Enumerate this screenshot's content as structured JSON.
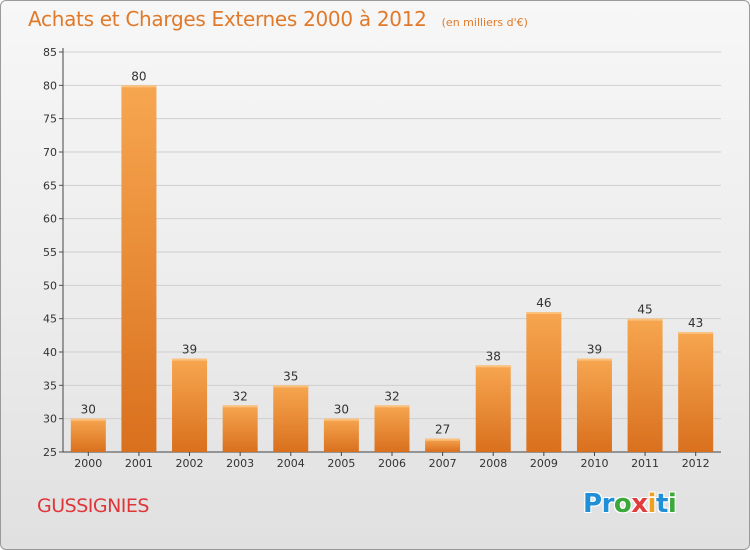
{
  "header": {
    "title": "Achats et Charges Externes 2000 à 2012",
    "subtitle": "(en milliers d'€)"
  },
  "footer": {
    "place": "GUSSIGNIES",
    "brand_letters": [
      {
        "char": "P",
        "color": "#1f8fd8"
      },
      {
        "char": "r",
        "color": "#1f8fd8"
      },
      {
        "char": "o",
        "color": "#3aa83a"
      },
      {
        "char": "x",
        "color": "#e23b3b"
      },
      {
        "char": "i",
        "color": "#f0a020"
      },
      {
        "char": "t",
        "color": "#1f8fd8"
      },
      {
        "char": "i",
        "color": "#3aa83a"
      }
    ]
  },
  "colors": {
    "title": "#e07a2a",
    "bar_top": "#f7a650",
    "bar_bottom": "#d9701e",
    "place": "#e0363a"
  },
  "chart_data": {
    "type": "bar",
    "title": "Achats et Charges Externes 2000 à 2012",
    "subtitle": "(en milliers d'€)",
    "categories": [
      "2000",
      "2001",
      "2002",
      "2003",
      "2004",
      "2005",
      "2006",
      "2007",
      "2008",
      "2009",
      "2010",
      "2011",
      "2012"
    ],
    "values": [
      30,
      80,
      39,
      32,
      35,
      30,
      32,
      27,
      38,
      46,
      39,
      45,
      43
    ],
    "ylim": [
      25,
      85
    ],
    "yticks": [
      25,
      30,
      35,
      40,
      45,
      50,
      55,
      60,
      65,
      70,
      75,
      80,
      85
    ],
    "grid": true,
    "data_labels": true
  }
}
